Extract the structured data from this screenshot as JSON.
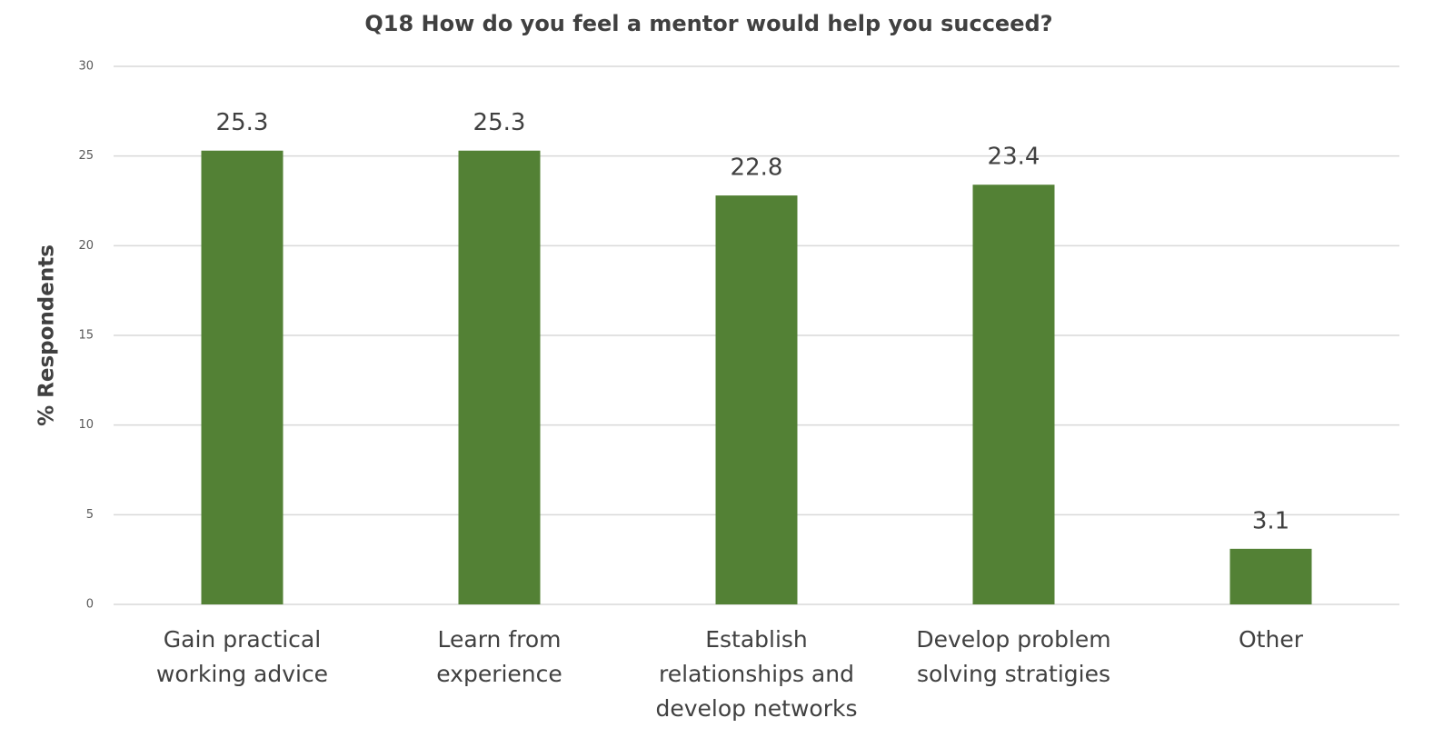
{
  "chart_data": {
    "type": "bar",
    "title": "Q18 How do you feel a mentor would help you succeed?",
    "y_label": "% Respondents",
    "categories": [
      "Gain practical working advice",
      "Learn from experience",
      "Establish relationships and develop networks",
      "Develop problem solving stratigies",
      "Other"
    ],
    "values": [
      25.3,
      25.3,
      22.8,
      23.4,
      3.1
    ],
    "color": "#538135",
    "ylim": [
      0,
      30
    ],
    "yticks": [
      0,
      5,
      10,
      15,
      20,
      25,
      30
    ],
    "grid": true
  }
}
